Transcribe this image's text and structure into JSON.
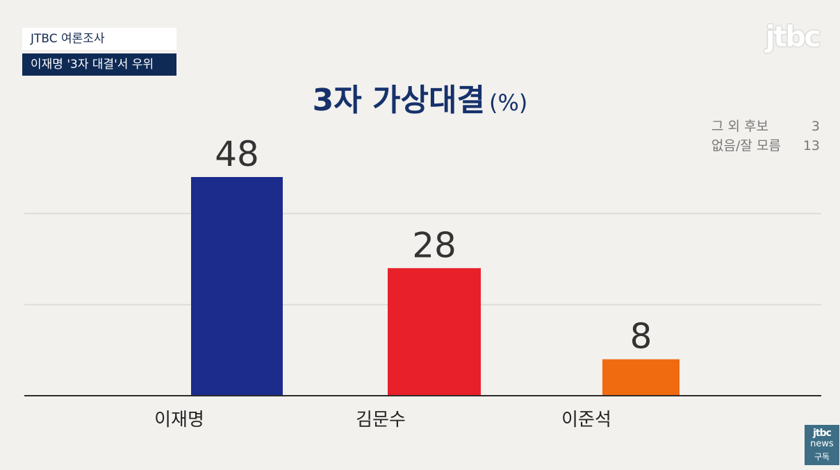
{
  "header": {
    "source": "JTBC 여론조사",
    "headline": "이재명 '3자 대결'서 우위"
  },
  "logo": {
    "text": "jtbc"
  },
  "subscribe": {
    "brand": "jtbc",
    "service": "news",
    "action": "구독"
  },
  "chart_data": {
    "type": "bar",
    "title": "3자 가상대결",
    "unit": "(%)",
    "categories": [
      "이재명",
      "김문수",
      "이준석"
    ],
    "values": [
      48,
      28,
      8
    ],
    "colors": [
      "#1b2c8c",
      "#e8202a",
      "#f06a0f"
    ],
    "ylim": [
      0,
      60
    ],
    "grid": true,
    "legend": "none",
    "annotations": [
      {
        "label": "그 외 후보",
        "value": "3"
      },
      {
        "label": "없음/잘 모름",
        "value": "13"
      }
    ]
  }
}
